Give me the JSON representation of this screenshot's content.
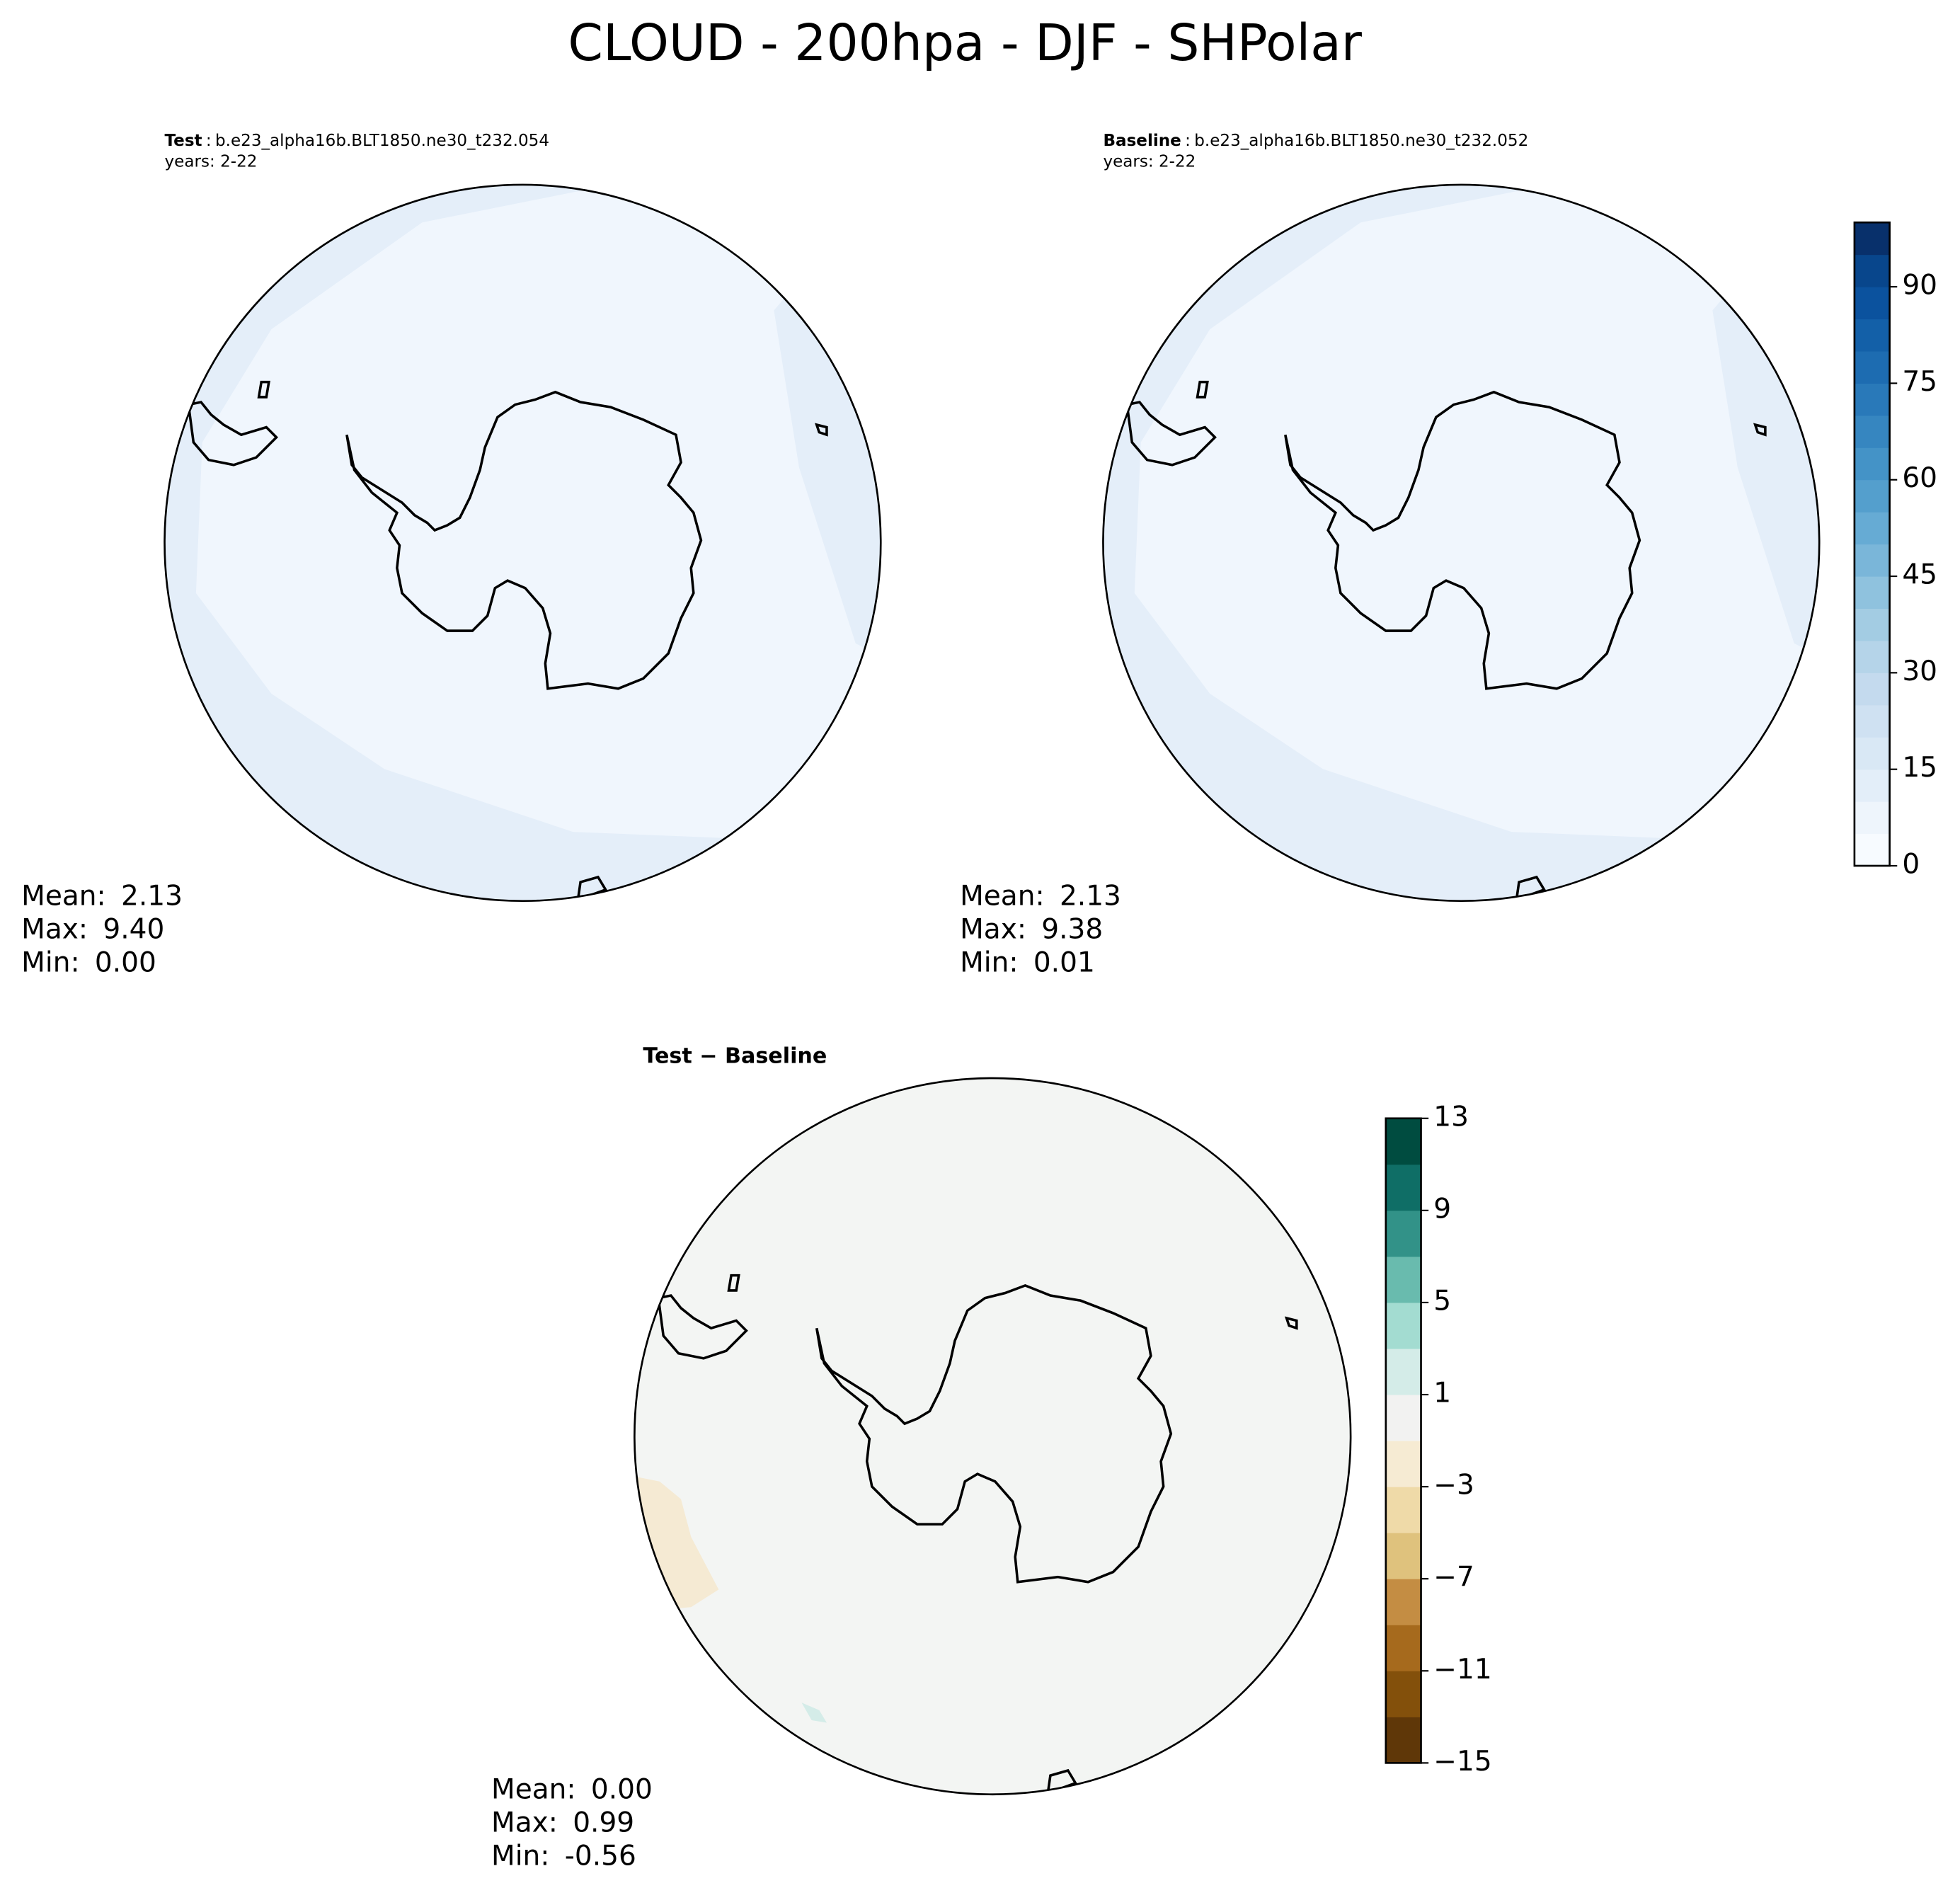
{
  "title": "CLOUD - 200hpa - DJF - SHPolar",
  "panels": [
    {
      "label": "Test",
      "separator": ":",
      "case": "b.e23_alpha16b.BLT1850.ne30_t232.054",
      "years": "years: 2-22",
      "stats": [
        {
          "label": "Mean:",
          "value": "2.13"
        },
        {
          "label": "Max:",
          "value": "9.40"
        },
        {
          "label": "Min:",
          "value": "0.00"
        }
      ],
      "fill": "#f0f6fd",
      "patch": "#e4eef9"
    },
    {
      "label": "Baseline",
      "separator": ":",
      "case": "b.e23_alpha16b.BLT1850.ne30_t232.052",
      "years": "years: 2-22",
      "stats": [
        {
          "label": "Mean:",
          "value": "2.13"
        },
        {
          "label": "Max:",
          "value": "9.38"
        },
        {
          "label": "Min:",
          "value": "0.01"
        }
      ],
      "fill": "#f0f6fd",
      "patch": "#e4eef9"
    },
    {
      "label": "Test − Baseline",
      "stats": [
        {
          "label": "Mean:",
          "value": "0.00"
        },
        {
          "label": "Max:",
          "value": "0.99"
        },
        {
          "label": "Min:",
          "value": "-0.56"
        }
      ],
      "fill": "#f3f5f3",
      "patch": "#f5ead3",
      "patch2": "#d4ece8"
    }
  ],
  "colorbars": [
    {
      "lim": [
        0,
        100
      ],
      "ticks": [
        0,
        15,
        30,
        45,
        60,
        75,
        90
      ],
      "colors": [
        "#f7fbff",
        "#eef5fc",
        "#e3eef9",
        "#d9e8f5",
        "#cfe1f2",
        "#c4daee",
        "#b5d4e9",
        "#a3cce3",
        "#8fc2de",
        "#7ab6d9",
        "#66abd4",
        "#549fcd",
        "#4493c7",
        "#3686c0",
        "#2979b9",
        "#1d6cb1",
        "#1360a8",
        "#0b529e",
        "#08468c",
        "#08306b"
      ]
    },
    {
      "lim": [
        -15,
        13
      ],
      "ticks": [
        {
          "value": -15,
          "label": "−15"
        },
        {
          "value": -11,
          "label": "−11"
        },
        {
          "value": -7,
          "label": "−7"
        },
        {
          "value": -3,
          "label": "−3"
        },
        1,
        5,
        9,
        13
      ],
      "colors": [
        "#5f3708",
        "#83500b",
        "#a66a1d",
        "#c48d43",
        "#dfc27d",
        "#efdaa8",
        "#f6ebd3",
        "#f2f2f1",
        "#d4ece8",
        "#a3dcd1",
        "#69bbae",
        "#329288",
        "#0f6e66",
        "#004c40"
      ]
    }
  ]
}
